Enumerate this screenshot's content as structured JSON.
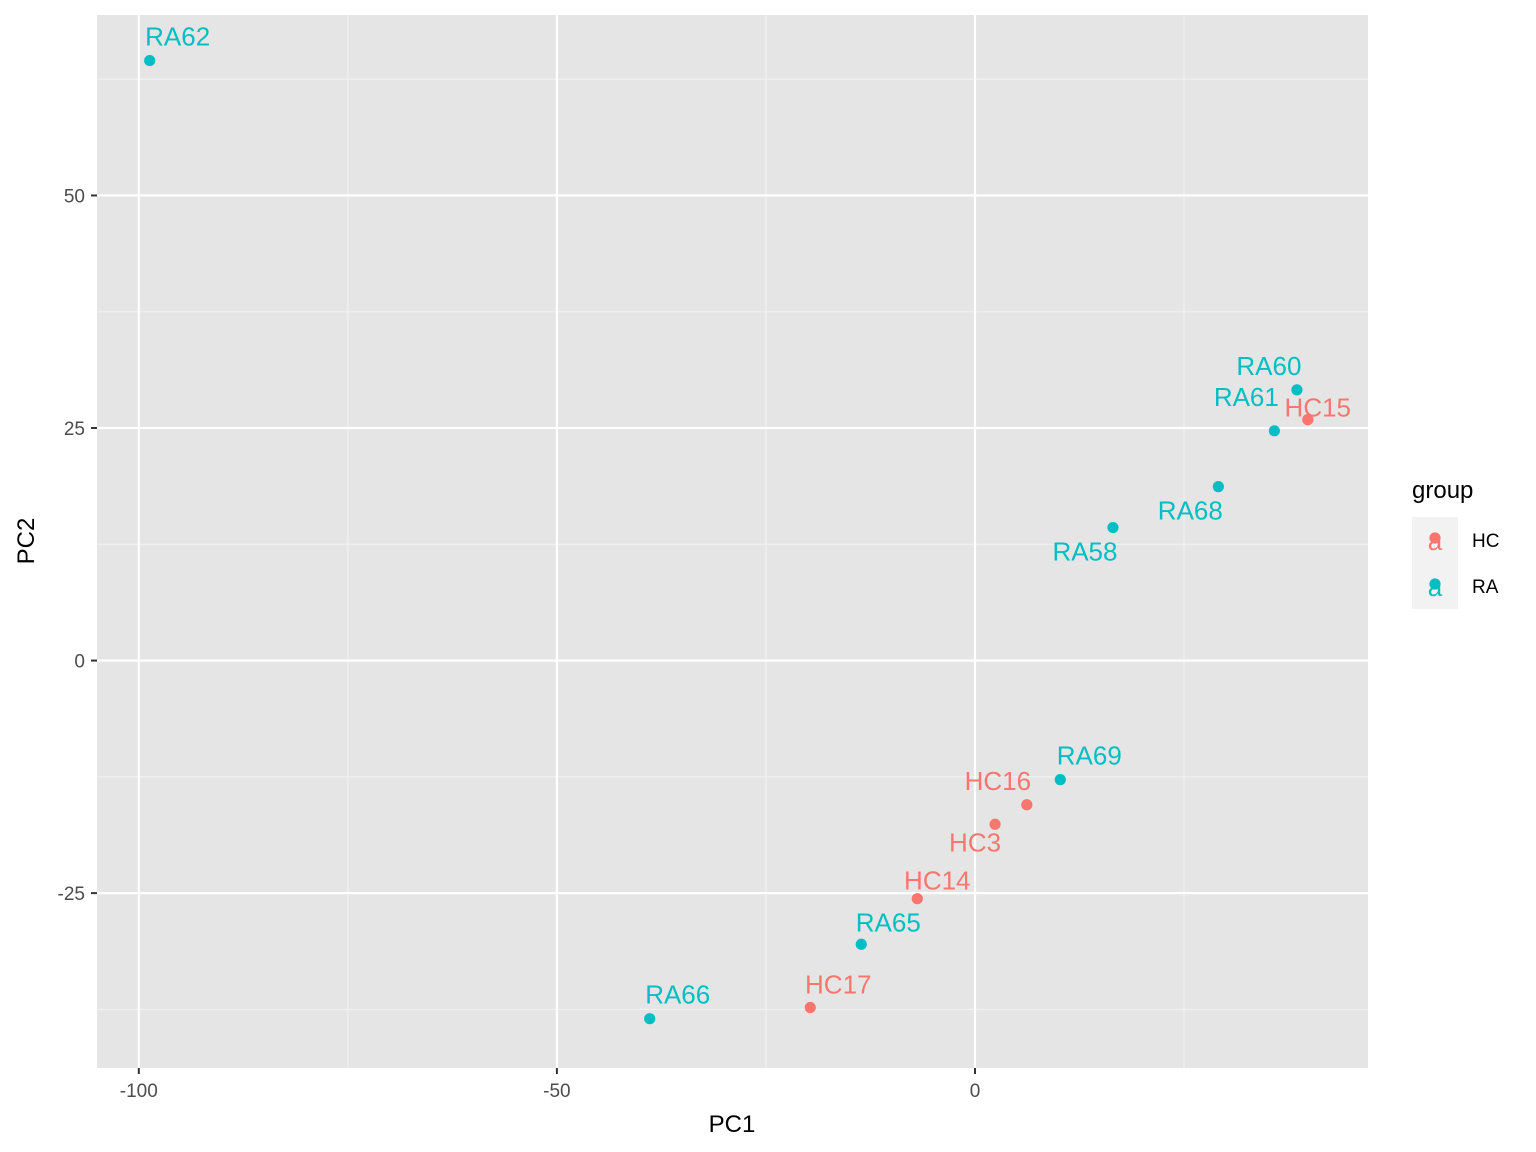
{
  "chart_data": {
    "type": "scatter",
    "xlabel": "PC1",
    "ylabel": "PC2",
    "xlim": [
      -105,
      47
    ],
    "ylim": [
      -43.8,
      69.4
    ],
    "x_ticks": [
      -100,
      -50,
      0
    ],
    "x_tick_labels": [
      "-100",
      "-50",
      "0"
    ],
    "y_ticks": [
      -25,
      0,
      25,
      50
    ],
    "y_tick_labels": [
      "-25",
      "0",
      "25",
      "50"
    ],
    "grid": true,
    "legend": {
      "title": "group",
      "placement": "right",
      "key_glyph": "a",
      "entries": [
        {
          "name": "HC",
          "color": "#F8766D"
        },
        {
          "name": "RA",
          "color": "#00BFC4"
        }
      ]
    },
    "series": [
      {
        "name": "HC",
        "color": "#F8766D",
        "points": [
          {
            "label": "HC15",
            "x": 39.8,
            "y": 25.9
          },
          {
            "label": "HC16",
            "x": 6.2,
            "y": -15.5
          },
          {
            "label": "HC3",
            "x": 2.4,
            "y": -17.6
          },
          {
            "label": "HC14",
            "x": -6.9,
            "y": -25.6
          },
          {
            "label": "HC17",
            "x": -19.7,
            "y": -37.3
          }
        ]
      },
      {
        "name": "RA",
        "color": "#00BFC4",
        "points": [
          {
            "label": "RA62",
            "x": -98.7,
            "y": 64.5
          },
          {
            "label": "RA60",
            "x": 38.5,
            "y": 29.1
          },
          {
            "label": "RA61",
            "x": 35.8,
            "y": 24.7
          },
          {
            "label": "RA68",
            "x": 29.1,
            "y": 18.7
          },
          {
            "label": "RA58",
            "x": 16.5,
            "y": 14.3
          },
          {
            "label": "RA69",
            "x": 10.2,
            "y": -12.8
          },
          {
            "label": "RA65",
            "x": -13.6,
            "y": -30.5
          },
          {
            "label": "RA66",
            "x": -38.9,
            "y": -38.5
          }
        ]
      }
    ]
  }
}
